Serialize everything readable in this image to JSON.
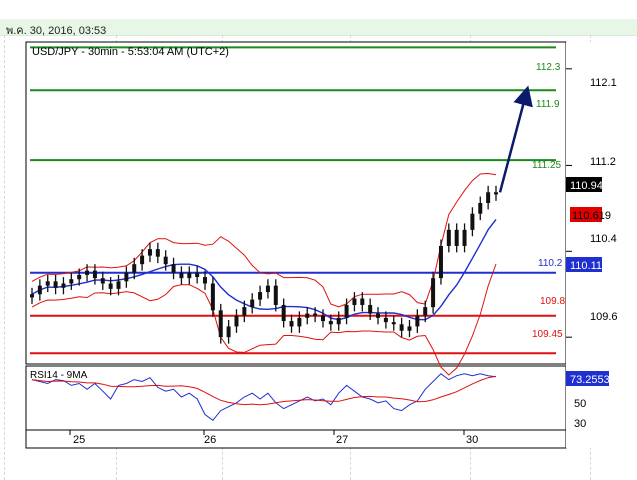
{
  "header": {
    "date_text": "พ.ค. 30, 2016, 03:53"
  },
  "chart_data": {
    "type": "candlestick",
    "title": "USD/JPY - 30min - 5:53:04 AM (UTC+2)",
    "ylim": [
      109.35,
      112.35
    ],
    "x_days": [
      "25",
      "26",
      "27",
      "30"
    ],
    "yticks": [
      "112.1",
      "111.2",
      "110.4",
      "109.6"
    ],
    "levels": [
      {
        "label": "112.3",
        "value": 112.3,
        "color": "#1a8a1a"
      },
      {
        "label": "111.9",
        "value": 111.9,
        "color": "#1a8a1a"
      },
      {
        "label": "111.25",
        "value": 111.25,
        "color": "#1a8a1a"
      },
      {
        "label": "110.2",
        "value": 110.2,
        "color": "#1f2fd0"
      },
      {
        "label": "109.8",
        "value": 109.8,
        "color": "#e01010"
      },
      {
        "label": "109.45",
        "value": 109.45,
        "color": "#e01010"
      }
    ],
    "price_tags": [
      {
        "label": "110.949",
        "value": 110.949,
        "bg": "#000000",
        "fg": "#ffffff"
      },
      {
        "label": "110.619",
        "value": 110.619,
        "bg": "#e00000",
        "fg": "#000000"
      },
      {
        "label": "110.113",
        "value": 110.113,
        "bg": "#1f2fd0",
        "fg": "#ffffff"
      }
    ],
    "forecast_arrow": {
      "from": 110.95,
      "to": 111.9
    },
    "moving_average_color": "#1f2fd0",
    "bollinger_color": "#e01010",
    "price_path": [
      110.0,
      110.08,
      110.12,
      110.06,
      110.1,
      110.14,
      110.18,
      110.22,
      110.15,
      110.1,
      110.05,
      110.12,
      110.2,
      110.28,
      110.36,
      110.42,
      110.35,
      110.28,
      110.2,
      110.15,
      110.2,
      110.16,
      110.1,
      109.85,
      109.6,
      109.7,
      109.8,
      109.88,
      109.95,
      110.02,
      110.08,
      109.9,
      109.75,
      109.7,
      109.78,
      109.82,
      109.8,
      109.75,
      109.72,
      109.78,
      109.9,
      109.96,
      109.9,
      109.82,
      109.78,
      109.74,
      109.72,
      109.66,
      109.7,
      109.8,
      109.88,
      110.15,
      110.45,
      110.6,
      110.45,
      110.6,
      110.75,
      110.85,
      110.95,
      110.93
    ],
    "rsi": {
      "label": "RSI14 - 9MA",
      "ylim": [
        20,
        82
      ],
      "yticks": [
        "50",
        "30"
      ],
      "value_tag": "73.2553",
      "rsi_color": "#1f2fd0",
      "ma_color": "#e01010",
      "values": [
        70,
        68,
        66,
        70,
        69,
        64,
        66,
        60,
        66,
        58,
        50,
        64,
        66,
        70,
        68,
        72,
        62,
        58,
        60,
        52,
        56,
        50,
        34,
        28,
        38,
        42,
        46,
        52,
        56,
        50,
        56,
        46,
        40,
        44,
        48,
        52,
        48,
        50,
        44,
        56,
        64,
        58,
        52,
        50,
        46,
        48,
        40,
        38,
        44,
        48,
        60,
        68,
        76,
        70,
        74,
        76,
        74,
        76,
        74,
        73
      ]
    }
  }
}
